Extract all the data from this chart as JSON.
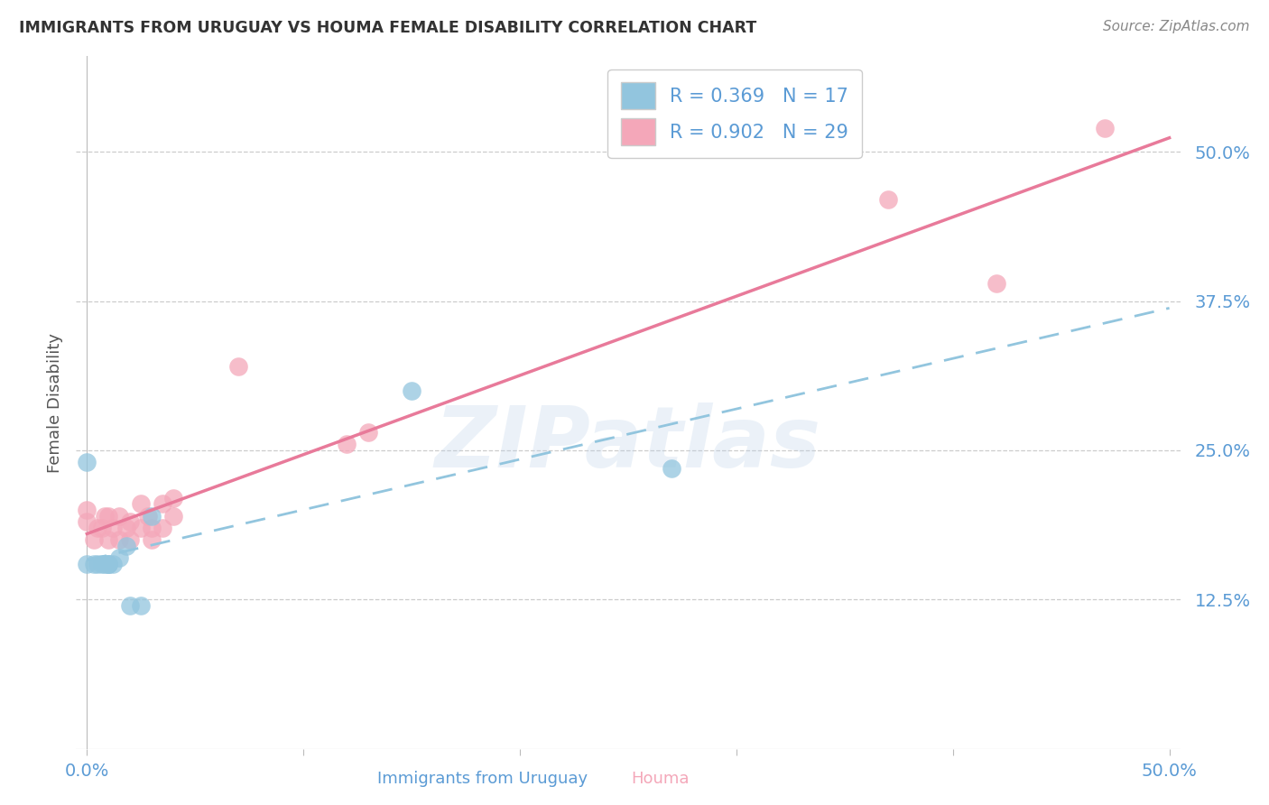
{
  "title": "IMMIGRANTS FROM URUGUAY VS HOUMA FEMALE DISABILITY CORRELATION CHART",
  "source": "Source: ZipAtlas.com",
  "xlabel_blue": "Immigrants from Uruguay",
  "xlabel_pink": "Houma",
  "ylabel": "Female Disability",
  "xlim": [
    -0.005,
    0.505
  ],
  "ylim": [
    0.0,
    0.58
  ],
  "xtick_pos": [
    0.0,
    0.1,
    0.2,
    0.3,
    0.4,
    0.5
  ],
  "xtick_labels": [
    "0.0%",
    "",
    "",
    "",
    "",
    "50.0%"
  ],
  "ytick_right": [
    0.125,
    0.25,
    0.375,
    0.5
  ],
  "ytick_right_labels": [
    "12.5%",
    "25.0%",
    "37.5%",
    "50.0%"
  ],
  "legend_blue_r": "R = 0.369",
  "legend_blue_n": "N = 17",
  "legend_pink_r": "R = 0.902",
  "legend_pink_n": "N = 29",
  "blue_dot_color": "#92c5de",
  "pink_dot_color": "#f4a7b9",
  "blue_line_color": "#92c5de",
  "pink_line_color": "#e87a9a",
  "watermark": "ZIPatlas",
  "blue_x": [
    0.0,
    0.003,
    0.005,
    0.007,
    0.008,
    0.01,
    0.01,
    0.01,
    0.012,
    0.015,
    0.018,
    0.02,
    0.025,
    0.03,
    0.27,
    0.15,
    0.0
  ],
  "blue_y": [
    0.155,
    0.155,
    0.155,
    0.155,
    0.155,
    0.155,
    0.155,
    0.155,
    0.155,
    0.16,
    0.17,
    0.12,
    0.12,
    0.195,
    0.235,
    0.3,
    0.24
  ],
  "pink_x": [
    0.0,
    0.0,
    0.003,
    0.005,
    0.007,
    0.008,
    0.01,
    0.01,
    0.012,
    0.015,
    0.015,
    0.018,
    0.02,
    0.02,
    0.025,
    0.025,
    0.028,
    0.03,
    0.03,
    0.035,
    0.035,
    0.04,
    0.04,
    0.07,
    0.12,
    0.13,
    0.37,
    0.42,
    0.47
  ],
  "pink_y": [
    0.19,
    0.2,
    0.175,
    0.185,
    0.185,
    0.195,
    0.175,
    0.195,
    0.185,
    0.175,
    0.195,
    0.185,
    0.175,
    0.19,
    0.185,
    0.205,
    0.195,
    0.175,
    0.185,
    0.185,
    0.205,
    0.195,
    0.21,
    0.32,
    0.255,
    0.265,
    0.46,
    0.39,
    0.52
  ],
  "background_color": "#ffffff",
  "grid_color": "#cccccc",
  "title_color": "#333333",
  "tick_label_color": "#5b9bd5",
  "right_tick_color": "#5b9bd5"
}
